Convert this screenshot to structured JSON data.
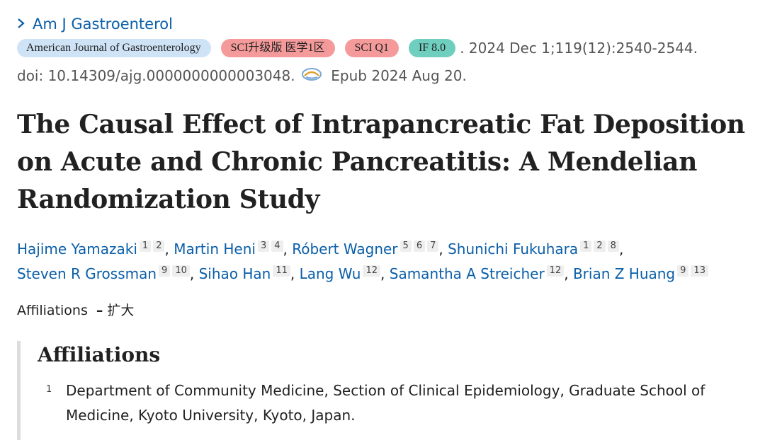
{
  "journal": {
    "chevron": "chevron-right-icon",
    "name": "Am J Gastroenterol"
  },
  "badges": {
    "journal_full": "American Journal of Gastroenterology",
    "sci_level": "SCI升级版 医学1区",
    "quartile": "SCI Q1",
    "impact": "IF 8.0"
  },
  "citation": {
    "rest": ". 2024 Dec 1;119(12):2540-2544."
  },
  "doi": {
    "text": "doi: 10.14309/ajg.0000000000003048.",
    "epub": "Epub 2024 Aug 20.",
    "epub_icon": "epub-icon"
  },
  "article": {
    "title": "The Causal Effect of Intrapancreatic Fat Deposition on Acute and Chronic Pancreatitis: A Mendelian Randomization Study"
  },
  "authors": [
    {
      "name": "Hajime Yamazaki",
      "affils": [
        "1",
        "2"
      ]
    },
    {
      "name": "Martin Heni",
      "affils": [
        "3",
        "4"
      ]
    },
    {
      "name": "Róbert Wagner",
      "affils": [
        "5",
        "6",
        "7"
      ]
    },
    {
      "name": "Shunichi Fukuhara",
      "affils": [
        "1",
        "2",
        "8"
      ]
    },
    {
      "name": "Steven R Grossman",
      "affils": [
        "9",
        "10"
      ]
    },
    {
      "name": "Sihao Han",
      "affils": [
        "11"
      ]
    },
    {
      "name": "Lang Wu",
      "affils": [
        "12"
      ]
    },
    {
      "name": "Samantha A Streicher",
      "affils": [
        "12"
      ]
    },
    {
      "name": "Brian Z Huang",
      "affils": [
        "9",
        "13"
      ]
    }
  ],
  "affiliations_toggle": {
    "label": "Affiliations",
    "dash": "–",
    "action": "扩大"
  },
  "affiliations": {
    "heading": "Affiliations",
    "items": [
      {
        "num": "1",
        "text": "Department of Community Medicine, Section of Clinical Epidemiology, Graduate School of Medicine, Kyoto University, Kyoto, Japan."
      }
    ]
  },
  "colors": {
    "link": "#0a5ea8",
    "badge_journal": "#cfe3f6",
    "badge_red": "#f49a9a",
    "badge_teal": "#6ecfbf"
  }
}
